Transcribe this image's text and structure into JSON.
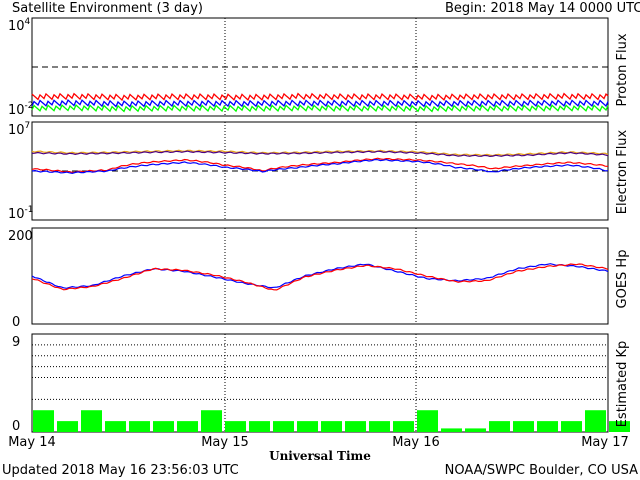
{
  "header": {
    "title": "Satellite Environment (3 day)",
    "begin": "Begin:  2018 May 14 0000 UTC"
  },
  "footer": {
    "updated": "Updated 2018 May 16 23:56:03 UTC",
    "credit": "NOAA/SWPC Boulder, CO USA",
    "xlabel": "Universal Time"
  },
  "colors": {
    "red": "#ff0000",
    "blue": "#0000ff",
    "green": "#00ff00",
    "orange": "#e8a317",
    "purple": "#4b0082"
  },
  "chart_data": [
    {
      "type": "line",
      "ylabel": "Proton Flux",
      "scale": "log",
      "ylim": [
        0.01,
        10000
      ],
      "ytick_labels": [
        "10^4",
        "10^-2"
      ],
      "threshold": 10,
      "x_ticks": [
        "May 14",
        "May 15",
        "May 16",
        "May 17"
      ],
      "series": [
        {
          "color": "red",
          "values": [
            0.15,
            0.16,
            0.14,
            0.15,
            0.15,
            0.14,
            0.16,
            0.15,
            0.15,
            0.14,
            0.15,
            0.15,
            0.16,
            0.15
          ]
        },
        {
          "color": "blue",
          "values": [
            0.06,
            0.065,
            0.055,
            0.06,
            0.06,
            0.058,
            0.062,
            0.06,
            0.06,
            0.057,
            0.06,
            0.06,
            0.062,
            0.06
          ]
        },
        {
          "color": "green",
          "values": [
            0.03,
            0.032,
            0.028,
            0.03,
            0.03,
            0.029,
            0.031,
            0.03,
            0.03,
            0.028,
            0.03,
            0.03,
            0.031,
            0.03
          ]
        }
      ]
    },
    {
      "type": "line",
      "ylabel": "Electron Flux",
      "scale": "log",
      "ylim": [
        0.1,
        10000000
      ],
      "ytick_labels": [
        "10^7",
        "10^-1"
      ],
      "threshold": 1000,
      "series": [
        {
          "color": "orange",
          "values": [
            40000,
            30000,
            33000,
            40000,
            45000,
            40000,
            30000,
            33000,
            40000,
            43000,
            37000,
            22000,
            20000,
            25000,
            35000,
            25000
          ]
        },
        {
          "color": "purple",
          "values": [
            30000,
            25000,
            28000,
            33000,
            38000,
            32000,
            26000,
            28000,
            33000,
            38000,
            30000,
            18000,
            17000,
            20000,
            30000,
            20000
          ]
        },
        {
          "color": "red",
          "values": [
            1500,
            800,
            1200,
            5000,
            8000,
            3000,
            1000,
            3000,
            5000,
            10000,
            8000,
            4000,
            1500,
            3000,
            5000,
            2500
          ]
        },
        {
          "color": "blue",
          "values": [
            1000,
            700,
            1000,
            3000,
            5000,
            2000,
            900,
            2000,
            4000,
            8000,
            6000,
            2000,
            800,
            2000,
            3000,
            1000
          ]
        }
      ]
    },
    {
      "type": "line",
      "ylabel": "GOES Hp",
      "ylim": [
        0,
        200
      ],
      "ytick_labels": [
        "200",
        "0"
      ],
      "series": [
        {
          "color": "blue",
          "values": [
            100,
            75,
            80,
            100,
            115,
            110,
            98,
            85,
            75,
            100,
            115,
            125,
            110,
            95,
            90,
            95,
            115,
            125,
            120,
            110
          ]
        },
        {
          "color": "red",
          "values": [
            95,
            72,
            78,
            95,
            115,
            112,
            102,
            88,
            70,
            98,
            112,
            122,
            115,
            100,
            88,
            90,
            110,
            120,
            125,
            115
          ]
        }
      ]
    },
    {
      "type": "bar",
      "ylabel": "Estimated Kp",
      "ylim": [
        0,
        9
      ],
      "ytick_labels": [
        "9",
        "0"
      ],
      "values": [
        2,
        1,
        2,
        1,
        1,
        1,
        1,
        2,
        1,
        1,
        1,
        1,
        1,
        1,
        1,
        1,
        2,
        0.33,
        0.33,
        1,
        1,
        1,
        1,
        2,
        1
      ]
    }
  ]
}
